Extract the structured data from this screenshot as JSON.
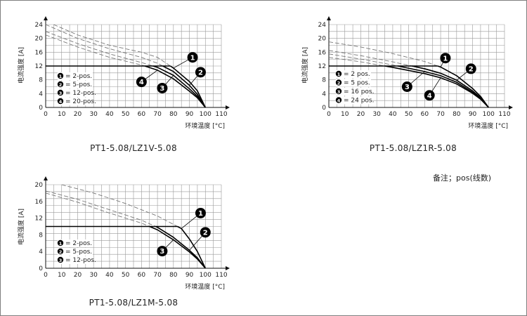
{
  "note": "备注；pos(线数)",
  "chart_data": [
    {
      "type": "line",
      "caption": "PT1-5.08/LZ1V-5.08",
      "xlabel": "环境温度 [°C]",
      "ylabel": "电流强度 [A]",
      "xlim": [
        0,
        110
      ],
      "ylim": [
        0,
        24
      ],
      "xticks": [
        0,
        10,
        20,
        30,
        40,
        50,
        60,
        70,
        80,
        90,
        100,
        110
      ],
      "yticks": [
        0,
        4,
        8,
        12,
        16,
        20,
        24
      ],
      "grid": true,
      "legend": [
        {
          "num": "1",
          "label": "= 2-pos."
        },
        {
          "num": "2",
          "label": "= 5-pos."
        },
        {
          "num": "3",
          "label": "= 12-pos."
        },
        {
          "num": "4",
          "label": "= 20-pos."
        }
      ],
      "series": [
        {
          "num": "1",
          "limit_y": 12,
          "derating": [
            [
              5,
              24
            ],
            [
              20,
              21
            ],
            [
              40,
              18
            ],
            [
              60,
              16
            ],
            [
              70,
              14.5
            ],
            [
              80,
              11.4
            ],
            [
              90,
              7.5
            ],
            [
              95,
              4.8
            ],
            [
              100,
              0
            ]
          ]
        },
        {
          "num": "2",
          "limit_y": 12,
          "derating": [
            [
              0,
              24
            ],
            [
              20,
              20
            ],
            [
              40,
              17
            ],
            [
              60,
              14.5
            ],
            [
              70,
              12.8
            ],
            [
              80,
              10.4
            ],
            [
              90,
              6.4
            ],
            [
              95,
              3.8
            ],
            [
              100,
              0
            ]
          ]
        },
        {
          "num": "3",
          "limit_y": 12,
          "derating": [
            [
              0,
              22
            ],
            [
              20,
              18.5
            ],
            [
              40,
              15.5
            ],
            [
              60,
              13
            ],
            [
              70,
              11.6
            ],
            [
              80,
              9.3
            ],
            [
              90,
              5.4
            ],
            [
              95,
              3.2
            ],
            [
              100,
              0
            ]
          ]
        },
        {
          "num": "4",
          "limit_y": 12,
          "derating": [
            [
              0,
              21
            ],
            [
              20,
              17.5
            ],
            [
              40,
              14.5
            ],
            [
              60,
              12.3
            ],
            [
              70,
              10.8
            ],
            [
              80,
              8.3
            ],
            [
              90,
              4.7
            ],
            [
              95,
              2.8
            ],
            [
              100,
              0
            ]
          ]
        }
      ],
      "callouts": [
        {
          "num": "1",
          "x": 92,
          "y": 14.5
        },
        {
          "num": "2",
          "x": 97,
          "y": 10.2
        },
        {
          "num": "3",
          "x": 73,
          "y": 5.6
        },
        {
          "num": "4",
          "x": 60,
          "y": 7.4
        }
      ]
    },
    {
      "type": "line",
      "caption": "PT1-5.08/LZ1R-5.08",
      "xlabel": "环境温度 [°C]",
      "ylabel": "电流强度 [A]",
      "xlim": [
        0,
        110
      ],
      "ylim": [
        0,
        24
      ],
      "xticks": [
        0,
        10,
        20,
        30,
        40,
        50,
        60,
        70,
        80,
        90,
        100,
        110
      ],
      "yticks": [
        0,
        4,
        8,
        12,
        16,
        20,
        24
      ],
      "grid": true,
      "legend": [
        {
          "num": "1",
          "label": "= 2 pos."
        },
        {
          "num": "2",
          "label": "= 5 pos."
        },
        {
          "num": "3",
          "label": "= 16 pos."
        },
        {
          "num": "4",
          "label": "= 24 pos."
        }
      ],
      "series": [
        {
          "num": "1",
          "limit_y": 12,
          "derating": [
            [
              0,
              19
            ],
            [
              20,
              17.5
            ],
            [
              40,
              15.6
            ],
            [
              60,
              13.3
            ],
            [
              70,
              11.7
            ],
            [
              80,
              9.2
            ],
            [
              90,
              5.5
            ],
            [
              95,
              3.2
            ],
            [
              100,
              0
            ]
          ]
        },
        {
          "num": "2",
          "limit_y": 12,
          "derating": [
            [
              0,
              16.5
            ],
            [
              20,
              15
            ],
            [
              40,
              13.2
            ],
            [
              60,
              11.2
            ],
            [
              70,
              9.9
            ],
            [
              80,
              7.9
            ],
            [
              90,
              4.8
            ],
            [
              95,
              2.8
            ],
            [
              100,
              0
            ]
          ]
        },
        {
          "num": "3",
          "limit_y": 12,
          "derating": [
            [
              0,
              15.5
            ],
            [
              20,
              14
            ],
            [
              40,
              12.3
            ],
            [
              60,
              10.4
            ],
            [
              70,
              9.2
            ],
            [
              80,
              7.3
            ],
            [
              90,
              4.4
            ],
            [
              95,
              2.6
            ],
            [
              100,
              0
            ]
          ]
        },
        {
          "num": "4",
          "limit_y": 12,
          "derating": [
            [
              0,
              14.5
            ],
            [
              20,
              13.2
            ],
            [
              40,
              11.6
            ],
            [
              60,
              9.8
            ],
            [
              70,
              8.6
            ],
            [
              80,
              6.8
            ],
            [
              90,
              4.1
            ],
            [
              95,
              2.4
            ],
            [
              100,
              0
            ]
          ]
        }
      ],
      "callouts": [
        {
          "num": "1",
          "x": 73,
          "y": 14.3
        },
        {
          "num": "2",
          "x": 89,
          "y": 11.2
        },
        {
          "num": "3",
          "x": 49,
          "y": 6
        },
        {
          "num": "4",
          "x": 63,
          "y": 3.5
        }
      ]
    },
    {
      "type": "line",
      "caption": "PT1-5.08/LZ1M-5.08",
      "xlabel": "环境温度 [°C]",
      "ylabel": "电流强度 [A]",
      "xlim": [
        0,
        110
      ],
      "ylim": [
        0,
        20
      ],
      "xticks": [
        0,
        10,
        20,
        30,
        40,
        50,
        60,
        70,
        80,
        90,
        100,
        110
      ],
      "yticks": [
        0,
        4,
        8,
        12,
        16,
        20
      ],
      "grid": true,
      "legend": [
        {
          "num": "1",
          "label": "= 2-pos."
        },
        {
          "num": "2",
          "label": "= 5-pos."
        },
        {
          "num": "3",
          "label": "= 12-pos."
        }
      ],
      "series": [
        {
          "num": "1",
          "limit_y": 10,
          "derating": [
            [
              10,
              20
            ],
            [
              30,
              18
            ],
            [
              50,
              15.5
            ],
            [
              70,
              12.5
            ],
            [
              80,
              10.5
            ],
            [
              85,
              9.5
            ],
            [
              90,
              7
            ],
            [
              95,
              4
            ],
            [
              100,
              0
            ]
          ]
        },
        {
          "num": "2",
          "limit_y": 10,
          "derating": [
            [
              0,
              18.5
            ],
            [
              20,
              16.5
            ],
            [
              40,
              14
            ],
            [
              60,
              11.5
            ],
            [
              70,
              9.8
            ],
            [
              80,
              7.4
            ],
            [
              90,
              4.3
            ],
            [
              95,
              2.5
            ],
            [
              100,
              0
            ]
          ]
        },
        {
          "num": "3",
          "limit_y": 10,
          "derating": [
            [
              0,
              18
            ],
            [
              20,
              15.8
            ],
            [
              40,
              13.2
            ],
            [
              60,
              10.8
            ],
            [
              70,
              9.2
            ],
            [
              80,
              6.8
            ],
            [
              90,
              3.9
            ],
            [
              95,
              2.2
            ],
            [
              100,
              0
            ]
          ]
        }
      ],
      "callouts": [
        {
          "num": "1",
          "x": 97,
          "y": 13.2
        },
        {
          "num": "2",
          "x": 100,
          "y": 8.6
        },
        {
          "num": "3",
          "x": 73,
          "y": 4.1
        }
      ]
    }
  ]
}
